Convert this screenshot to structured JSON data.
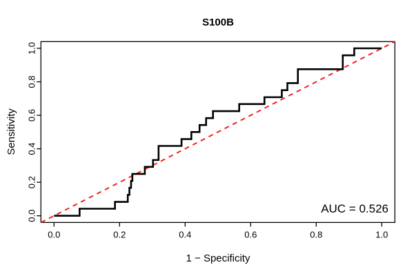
{
  "chart_data": {
    "type": "line",
    "subtype": "roc-step-curve",
    "title": "S100B",
    "xlabel": "1 − Specificity",
    "ylabel": "Sensitivity",
    "xlim": [
      0.0,
      1.0
    ],
    "ylim": [
      0.0,
      1.0
    ],
    "axis_expand": 0.04,
    "grid": "off",
    "x_tick_labels": [
      "0.0",
      "0.2",
      "0.4",
      "0.6",
      "0.8",
      "1.0"
    ],
    "y_tick_labels": [
      "0.0",
      "0.2",
      "0.4",
      "0.6",
      "0.8",
      "1.0"
    ],
    "x_tick_values": [
      0.0,
      0.2,
      0.4,
      0.6,
      0.8,
      1.0
    ],
    "y_tick_values": [
      0.0,
      0.2,
      0.4,
      0.6,
      0.8,
      1.0
    ],
    "annotation": {
      "label": "AUC = 0.526",
      "auc_value": 0.526,
      "position": "bottom-right"
    },
    "series": [
      {
        "name": "roc-curve",
        "color": "#000000",
        "line_width": 2.6,
        "style": "step",
        "start": [
          0.0,
          0.0
        ],
        "end": [
          1.0,
          1.0
        ],
        "steps": [
          {
            "x": 0.078,
            "y": 0.042
          },
          {
            "x": 0.186,
            "y": 0.083
          },
          {
            "x": 0.225,
            "y": 0.125
          },
          {
            "x": 0.23,
            "y": 0.167
          },
          {
            "x": 0.235,
            "y": 0.208
          },
          {
            "x": 0.239,
            "y": 0.25
          },
          {
            "x": 0.277,
            "y": 0.292
          },
          {
            "x": 0.302,
            "y": 0.333
          },
          {
            "x": 0.319,
            "y": 0.417
          },
          {
            "x": 0.389,
            "y": 0.458
          },
          {
            "x": 0.419,
            "y": 0.5
          },
          {
            "x": 0.444,
            "y": 0.542
          },
          {
            "x": 0.464,
            "y": 0.583
          },
          {
            "x": 0.485,
            "y": 0.625
          },
          {
            "x": 0.565,
            "y": 0.667
          },
          {
            "x": 0.642,
            "y": 0.708
          },
          {
            "x": 0.695,
            "y": 0.75
          },
          {
            "x": 0.712,
            "y": 0.792
          },
          {
            "x": 0.744,
            "y": 0.875
          },
          {
            "x": 0.881,
            "y": 0.958
          },
          {
            "x": 0.916,
            "y": 1.0
          }
        ]
      },
      {
        "name": "chance-diagonal",
        "color": "#ee2222",
        "line_width": 2,
        "style": "dashed",
        "from": [
          0.0,
          0.0
        ],
        "to": [
          1.0,
          1.0
        ]
      }
    ]
  }
}
